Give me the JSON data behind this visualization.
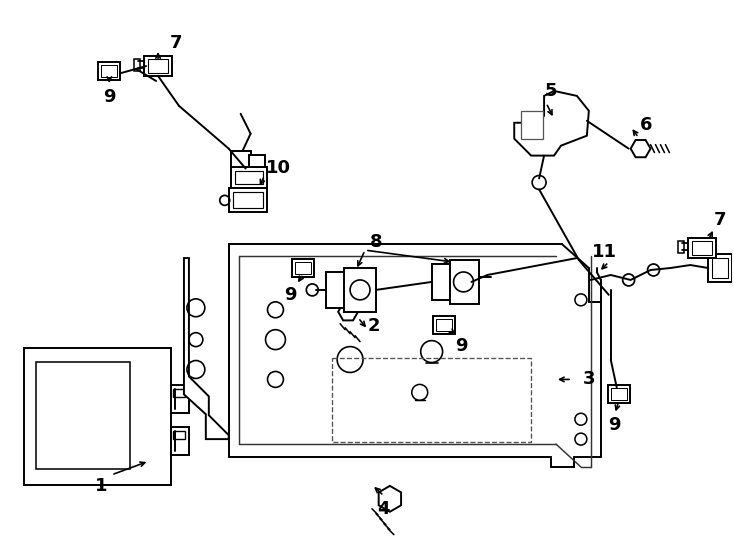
{
  "bg_color": "#ffffff",
  "line_color": "#000000",
  "lw": 1.4,
  "fig_width": 7.34,
  "fig_height": 5.4,
  "dpi": 100
}
